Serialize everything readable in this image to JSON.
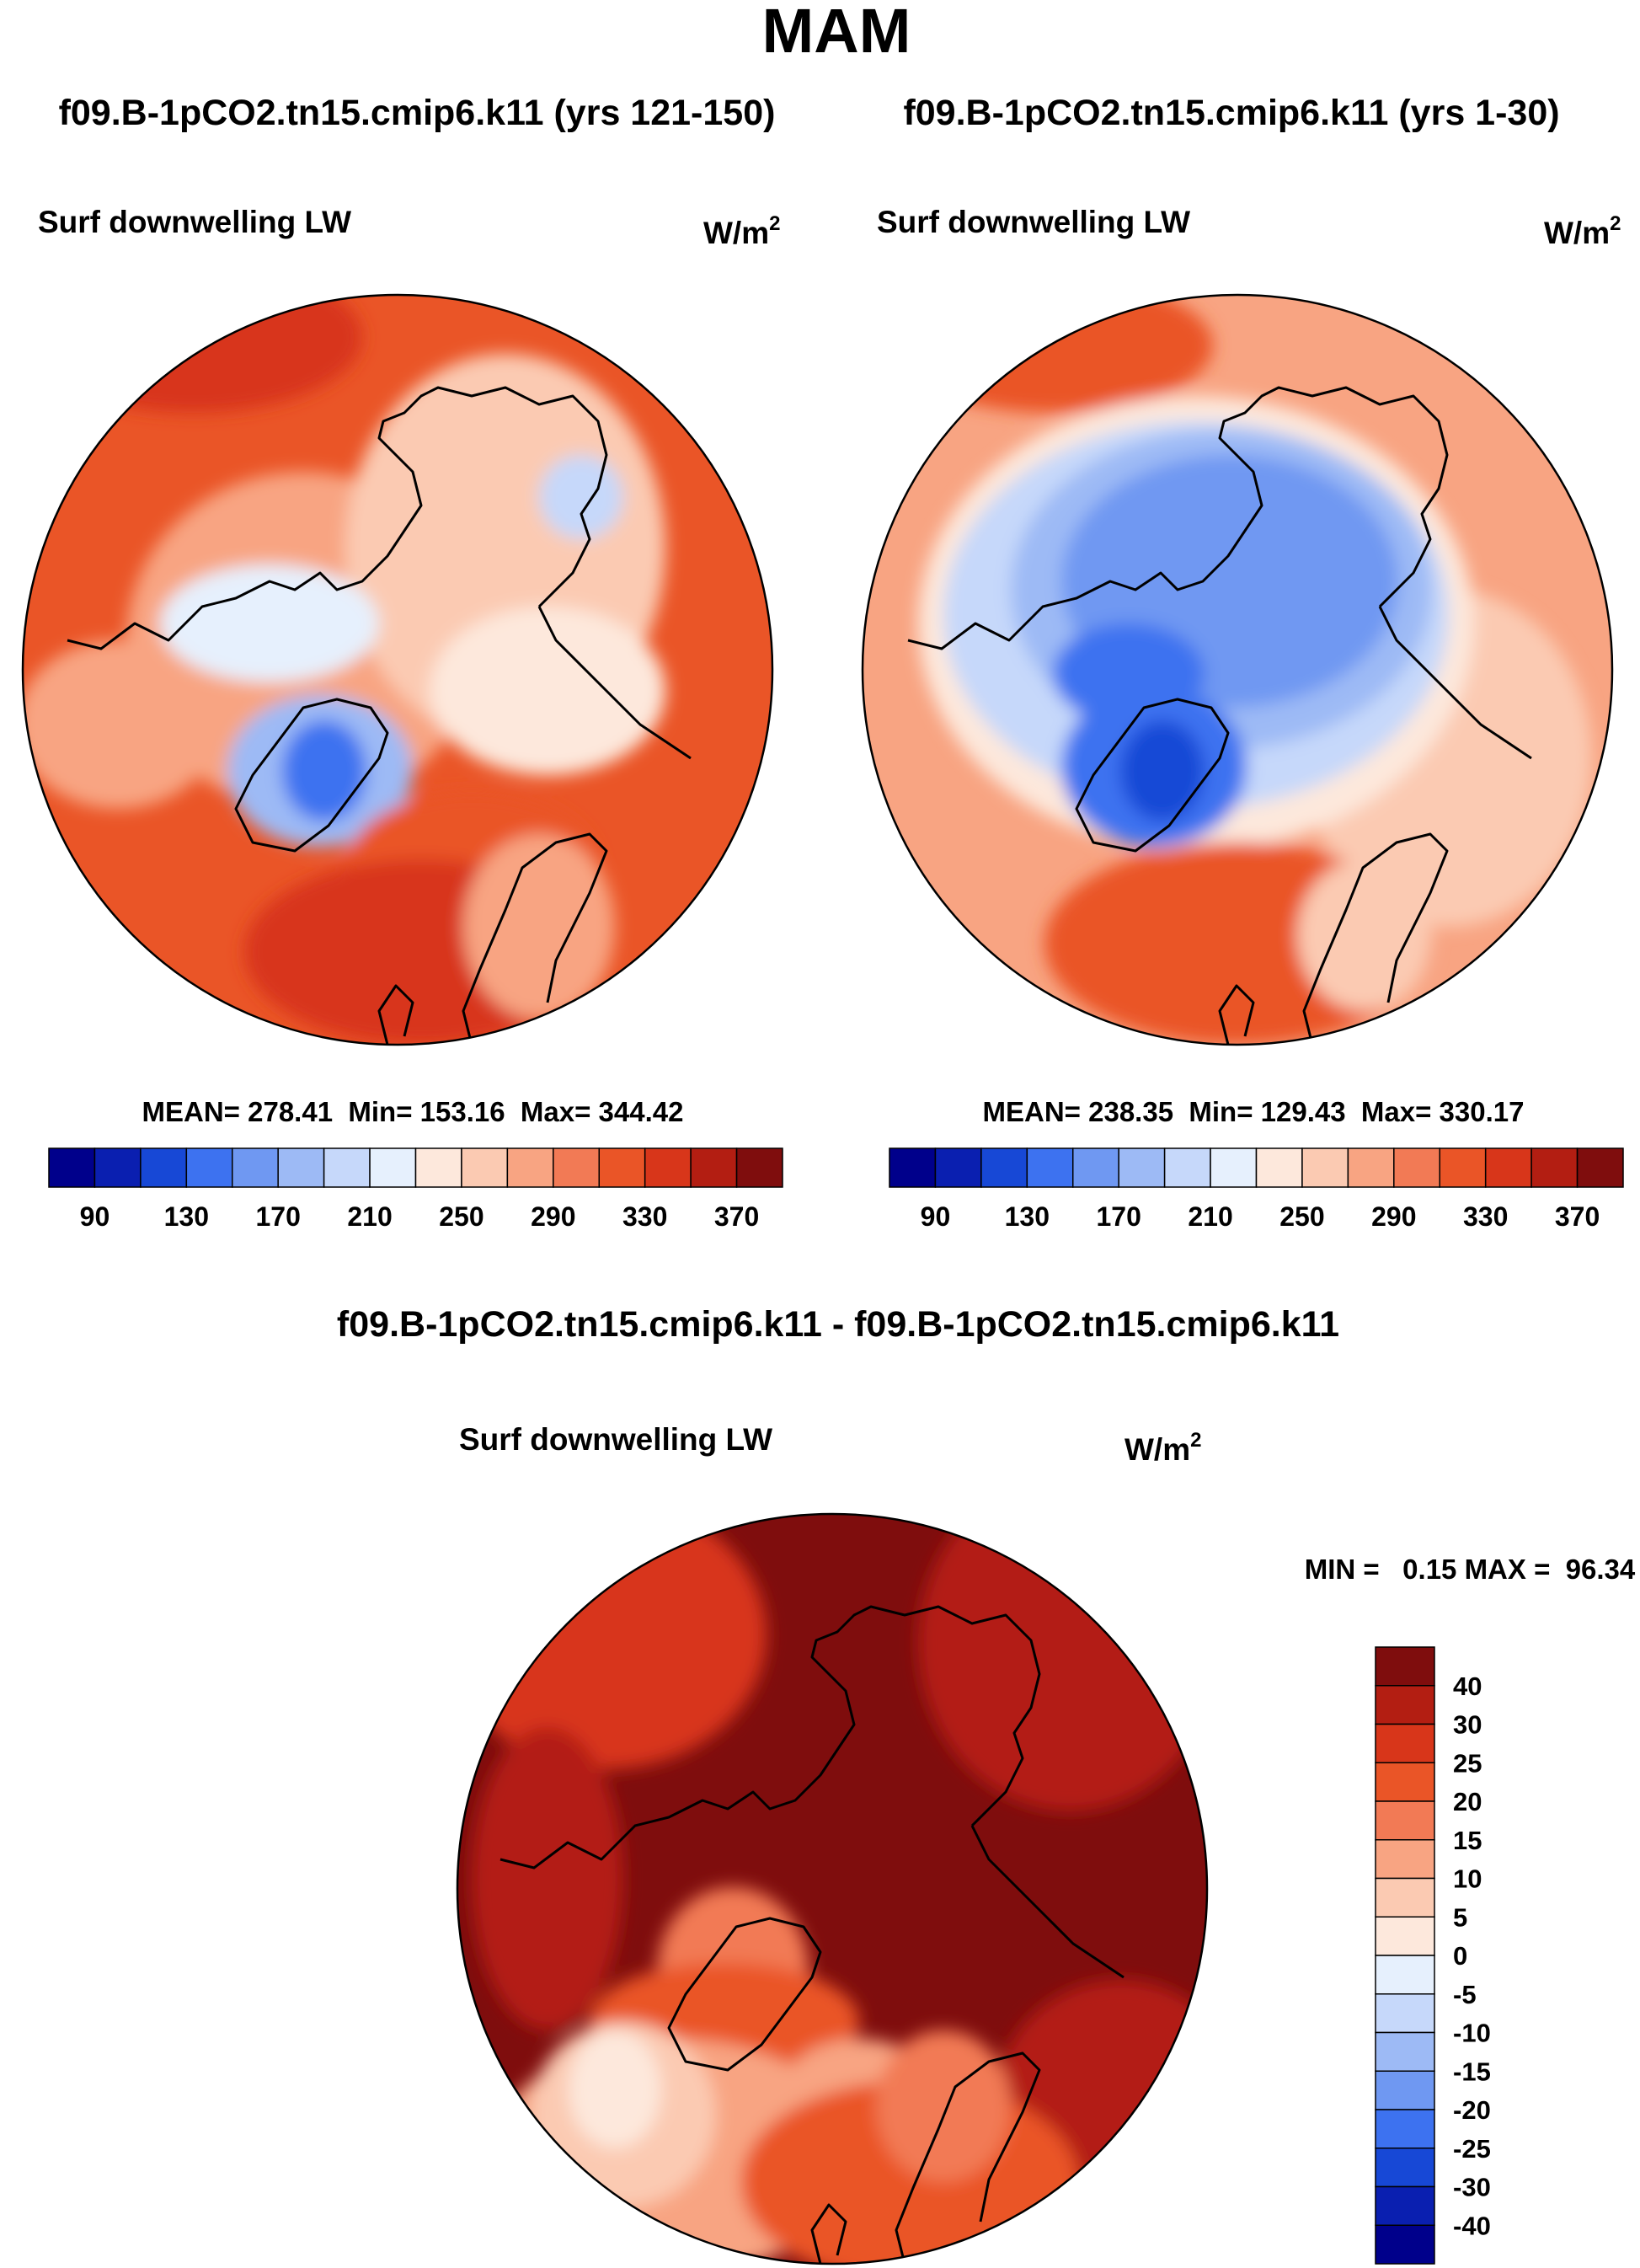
{
  "figure": {
    "season_title": "MAM",
    "colors": {
      "abs_scale": [
        "#00008b",
        "#0a1fb0",
        "#1748d6",
        "#3d72f0",
        "#6f98f2",
        "#9dbaf5",
        "#c6d8fa",
        "#e6f0fd",
        "#fde8dc",
        "#fbcab2",
        "#f8a482",
        "#f27a55",
        "#ea5527",
        "#d8361a",
        "#b31e12",
        "#7f0d0d"
      ],
      "diff_scale": [
        "#00008b",
        "#0a1fb0",
        "#1748d6",
        "#3d72f0",
        "#6f98f2",
        "#9dbaf5",
        "#c6d8fa",
        "#e6f0fd",
        "#fde8dc",
        "#fbcab2",
        "#f8a482",
        "#f27a55",
        "#ea5527",
        "#d8361a",
        "#b31e12",
        "#7f0d0d"
      ],
      "coastline": "#000000"
    }
  },
  "panels": [
    {
      "id": "left",
      "case_title": "f09.B-1pCO2.tn15.cmip6.k11 (yrs 121-150)",
      "variable": "Surf downwelling LW",
      "units_base": "W/m",
      "units_exp": "2",
      "stats": "MEAN= 278.41  Min= 153.16  Max= 344.42",
      "mean": 278.41,
      "min": 153.16,
      "max": 344.42
    },
    {
      "id": "right",
      "case_title": "f09.B-1pCO2.tn15.cmip6.k11 (yrs 1-30)",
      "variable": "Surf downwelling LW",
      "units_base": "W/m",
      "units_exp": "2",
      "stats": "MEAN= 238.35  Min= 129.43  Max= 330.17",
      "mean": 238.35,
      "min": 129.43,
      "max": 330.17
    }
  ],
  "colorbar_labels": [
    "90",
    "130",
    "170",
    "210",
    "250",
    "290",
    "330",
    "370"
  ],
  "difference": {
    "title": "f09.B-1pCO2.tn15.cmip6.k11 - f09.B-1pCO2.tn15.cmip6.k11",
    "variable": "Surf downwelling LW",
    "units_base": "W/m",
    "units_exp": "2",
    "stats": "MIN =   0.15 MAX =  96.34",
    "min": 0.15,
    "max": 96.34,
    "colorbar_labels": [
      "40",
      "30",
      "25",
      "20",
      "15",
      "10",
      "5",
      "0",
      "-5",
      "-10",
      "-15",
      "-20",
      "-25",
      "-30",
      "-40"
    ]
  }
}
